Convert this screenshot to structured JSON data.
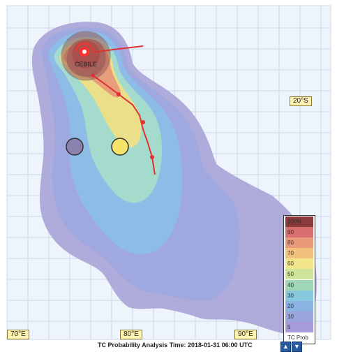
{
  "map": {
    "storm_name": "CEBILE",
    "lat_labels": [
      "20°S"
    ],
    "lon_labels": [
      "70°E",
      "80°E",
      "90°E"
    ],
    "caption": "TC Probability Analysis Time: 2018-01-31 06:00 UTC",
    "legend_ticks": [
      "100%",
      "90",
      "80",
      "70",
      "60",
      "50",
      "40",
      "30",
      "20",
      "10",
      "5",
      "TC Prob"
    ],
    "legend_colors": [
      "#8a3a3a",
      "#d86f6f",
      "#e89a7a",
      "#f2c27d",
      "#f3e58a",
      "#cfe39a",
      "#9fd6b5",
      "#86c9de",
      "#8ab3e3",
      "#9aa5db",
      "#a79ad8"
    ],
    "nav": {
      "up_icon": "up-arrow-icon",
      "down_icon": "down-arrow-icon"
    }
  }
}
